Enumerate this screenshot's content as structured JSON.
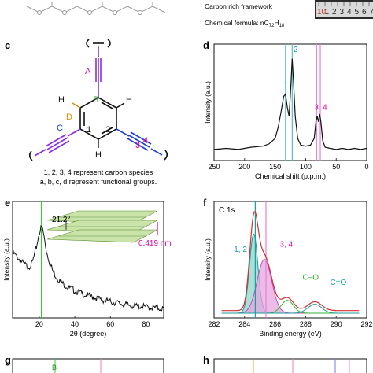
{
  "top": {
    "framework_label": "Carbon rich framework",
    "formula_prefix": "Chemical formula: nC",
    "formula_sub1": "72",
    "formula_h": "H",
    "formula_sub2": "18",
    "ruler_digits": [
      "10",
      "1",
      "2",
      "3",
      "4",
      "5",
      "6",
      "7"
    ]
  },
  "panel_c": {
    "letter": "c",
    "atom_labels": [
      "A",
      "B",
      "C",
      "D",
      "H",
      "H",
      "H",
      "1",
      "2",
      "3",
      "4"
    ],
    "caption_line1": "1, 2, 3, 4 represent carbon species",
    "caption_line2": "a, b, c, d represent functional groups.",
    "colors": {
      "A": "#e0009a",
      "B": "#2e8b2e",
      "C": "#1f3fd6",
      "D": "#e08a00",
      "bond": "#8a2be2",
      "ring": "#111111"
    }
  },
  "panel_d": {
    "letter": "d",
    "peak_labels": [
      "1",
      "2",
      "3",
      "4"
    ],
    "peak_label_colors": [
      "#1a9e9e",
      "#1a9e9e",
      "#e0009a",
      "#e0009a"
    ],
    "chart_data": {
      "type": "line",
      "xlabel": "Chemical shift (p.p.m.)",
      "ylabel": "Intensity (a.u.)",
      "xlim": [
        250,
        0
      ],
      "x_ticks": [
        250,
        200,
        150,
        100,
        50,
        0
      ],
      "reference_lines": [
        {
          "x": 133,
          "color": "#4fc3c3"
        },
        {
          "x": 122,
          "color": "#4fc3c3"
        },
        {
          "x": 82,
          "color": "#e880d0"
        },
        {
          "x": 76,
          "color": "#e880d0"
        }
      ],
      "series": [
        {
          "x": [
            250,
            230,
            210,
            190,
            170,
            160,
            150,
            145,
            140,
            136,
            133,
            130,
            127,
            124,
            122,
            120,
            117,
            113,
            108,
            100,
            92,
            86,
            83,
            81,
            79,
            77,
            75,
            72,
            68,
            60,
            50,
            40,
            30,
            20,
            10,
            0
          ],
          "y": [
            0.1,
            0.11,
            0.1,
            0.12,
            0.13,
            0.15,
            0.2,
            0.3,
            0.45,
            0.58,
            0.6,
            0.48,
            0.4,
            0.7,
            0.92,
            0.72,
            0.4,
            0.2,
            0.14,
            0.13,
            0.14,
            0.2,
            0.36,
            0.4,
            0.35,
            0.42,
            0.35,
            0.18,
            0.12,
            0.11,
            0.1,
            0.11,
            0.1,
            0.11,
            0.1,
            0.11
          ]
        }
      ]
    }
  },
  "panel_e": {
    "letter": "e",
    "angle_label": "21.2°",
    "spacing_label": "0.419 nm",
    "chart_data": {
      "type": "line",
      "xlabel": "2θ (degree)",
      "ylabel": "Intensity (a.u.)",
      "xlim": [
        5,
        90
      ],
      "x_ticks": [
        20,
        40,
        60,
        80
      ],
      "reference_lines": [
        {
          "x": 21.2,
          "color": "#33cc33"
        }
      ],
      "series": [
        {
          "x": [
            5,
            8,
            11,
            14,
            16,
            18,
            19,
            20,
            21,
            21.2,
            22,
            23,
            24,
            26,
            28,
            30,
            33,
            36,
            40,
            45,
            50,
            55,
            60,
            65,
            70,
            75,
            80,
            85,
            90
          ],
          "y": [
            0.72,
            0.66,
            0.6,
            0.56,
            0.6,
            0.74,
            0.84,
            0.94,
            0.99,
            1.0,
            0.97,
            0.86,
            0.74,
            0.6,
            0.5,
            0.44,
            0.38,
            0.34,
            0.3,
            0.26,
            0.23,
            0.2,
            0.18,
            0.16,
            0.14,
            0.13,
            0.12,
            0.11,
            0.1
          ]
        }
      ]
    }
  },
  "panel_f": {
    "letter": "f",
    "inner_title": "C 1s",
    "labels": [
      "1, 2",
      "3, 4",
      "C–O",
      "C=O"
    ],
    "label_colors": [
      "#1a9e9e",
      "#e0009a",
      "#2eb82e",
      "#1a9e9e"
    ],
    "chart_data": {
      "type": "line",
      "xlabel": "Binding energy (eV)",
      "ylabel": "Intensity (a.u.)",
      "xlim": [
        282,
        292
      ],
      "x_ticks": [
        282,
        284,
        286,
        288,
        290,
        292
      ],
      "reference_lines": [
        {
          "x": 284.7,
          "color": "#1a9e9e"
        },
        {
          "x": 285.4,
          "color": "#e880d0"
        }
      ],
      "components": [
        {
          "center": 284.6,
          "height": 0.62,
          "width": 0.55,
          "color": "#1a9e9e",
          "fill": "#8fd3c8"
        },
        {
          "center": 285.3,
          "height": 0.42,
          "width": 0.95,
          "color": "#c04fc0",
          "fill": "#e6a6e0"
        },
        {
          "center": 286.8,
          "height": 0.1,
          "width": 0.8,
          "color": "#2eb82e",
          "fill": "none"
        },
        {
          "center": 288.6,
          "height": 0.07,
          "width": 0.9,
          "color": "#1a9e9e",
          "fill": "none"
        }
      ]
    }
  },
  "panel_g": {
    "letter": "g",
    "label": "B"
  },
  "panel_h": {
    "letter": "h"
  }
}
